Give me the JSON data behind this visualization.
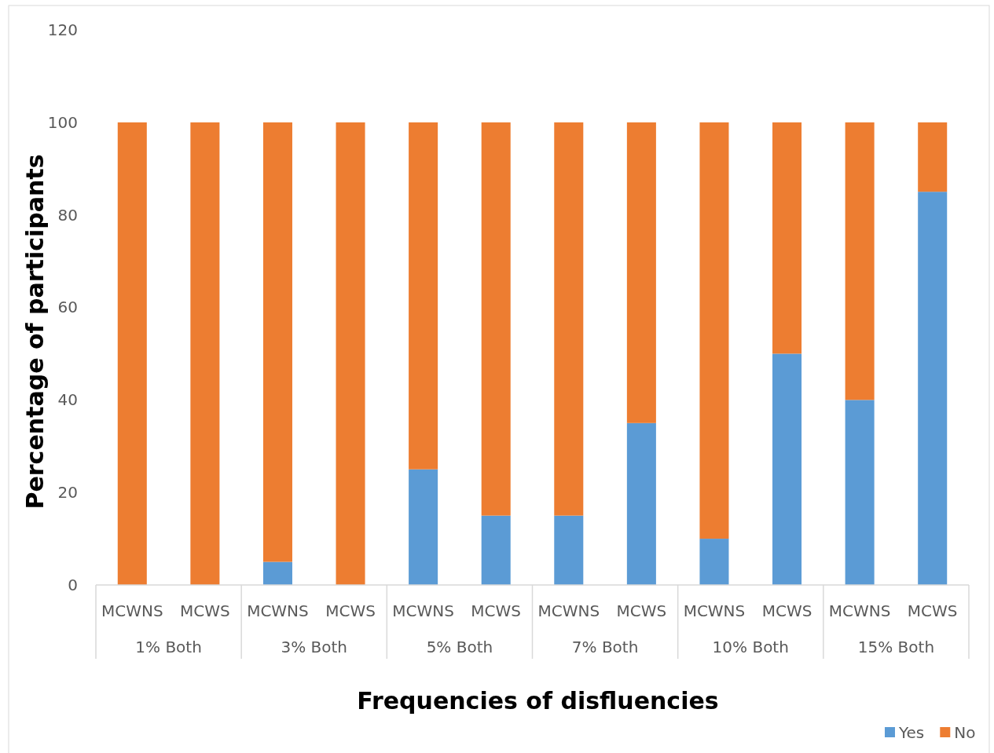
{
  "chart_data": {
    "type": "bar",
    "stacked": true,
    "xlabel": "Frequencies of disfluencies",
    "ylabel": "Percentage of participants",
    "categories": [
      "MCWNS",
      "MCWS",
      "MCWNS",
      "MCWS",
      "MCWNS",
      "MCWS",
      "MCWNS",
      "MCWS",
      "MCWNS",
      "MCWS",
      "MCWNS",
      "MCWS"
    ],
    "annotations": [
      "1% Both",
      "3% Both",
      "5% Both",
      "7% Both",
      "10% Both",
      "15% Both"
    ],
    "series": [
      {
        "name": "Yes",
        "color": "#5b9bd5",
        "values": [
          0,
          0,
          5,
          0,
          25,
          15,
          15,
          35,
          10,
          50,
          40,
          85
        ]
      },
      {
        "name": "No",
        "color": "#ed7d31",
        "values": [
          100,
          100,
          95,
          100,
          75,
          85,
          85,
          65,
          90,
          50,
          60,
          15
        ]
      }
    ],
    "ylim": [
      0,
      120
    ],
    "yticks": [
      0,
      20,
      40,
      60,
      80,
      100,
      120
    ],
    "grid": false,
    "legend": "bottom right"
  }
}
